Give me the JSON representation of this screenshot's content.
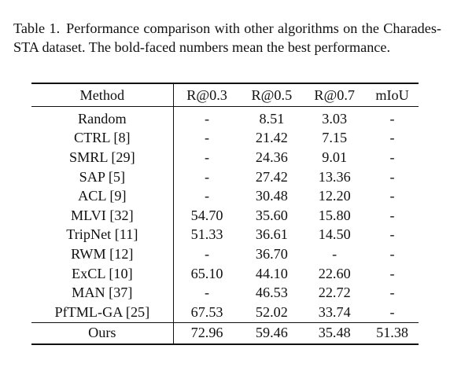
{
  "caption": {
    "label": "Table 1.",
    "text": "Performance comparison with other algorithms on the Charades-STA dataset. The bold-faced numbers mean the best performance."
  },
  "table": {
    "headers": [
      "Method",
      "R@0.3",
      "R@0.5",
      "R@0.7",
      "mIoU"
    ],
    "rows": [
      [
        "Random",
        "-",
        "8.51",
        "3.03",
        "-"
      ],
      [
        "CTRL [8]",
        "-",
        "21.42",
        "7.15",
        "-"
      ],
      [
        "SMRL [29]",
        "-",
        "24.36",
        "9.01",
        "-"
      ],
      [
        "SAP [5]",
        "-",
        "27.42",
        "13.36",
        "-"
      ],
      [
        "ACL [9]",
        "-",
        "30.48",
        "12.20",
        "-"
      ],
      [
        "MLVI [32]",
        "54.70",
        "35.60",
        "15.80",
        "-"
      ],
      [
        "TripNet [11]",
        "51.33",
        "36.61",
        "14.50",
        "-"
      ],
      [
        "RWM [12]",
        "-",
        "36.70",
        "-",
        "-"
      ],
      [
        "ExCL [10]",
        "65.10",
        "44.10",
        "22.60",
        "-"
      ],
      [
        "MAN [37]",
        "-",
        "46.53",
        "22.72",
        "-"
      ],
      [
        "PfTML-GA [25]",
        "67.53",
        "52.02",
        "33.74",
        "-"
      ]
    ],
    "ours": [
      "Ours",
      "72.96",
      "59.46",
      "35.48",
      "51.38"
    ]
  }
}
